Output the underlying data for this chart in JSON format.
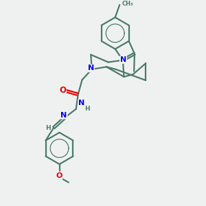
{
  "bg_color": "#eff1f0",
  "bond_color": "#4a7a6a",
  "N_color": "#0000ee",
  "O_color": "#ee0000",
  "line_width": 1.6,
  "figsize": [
    3.0,
    3.0
  ],
  "dpi": 100,
  "xlim": [
    0,
    10
  ],
  "ylim": [
    0,
    10
  ]
}
